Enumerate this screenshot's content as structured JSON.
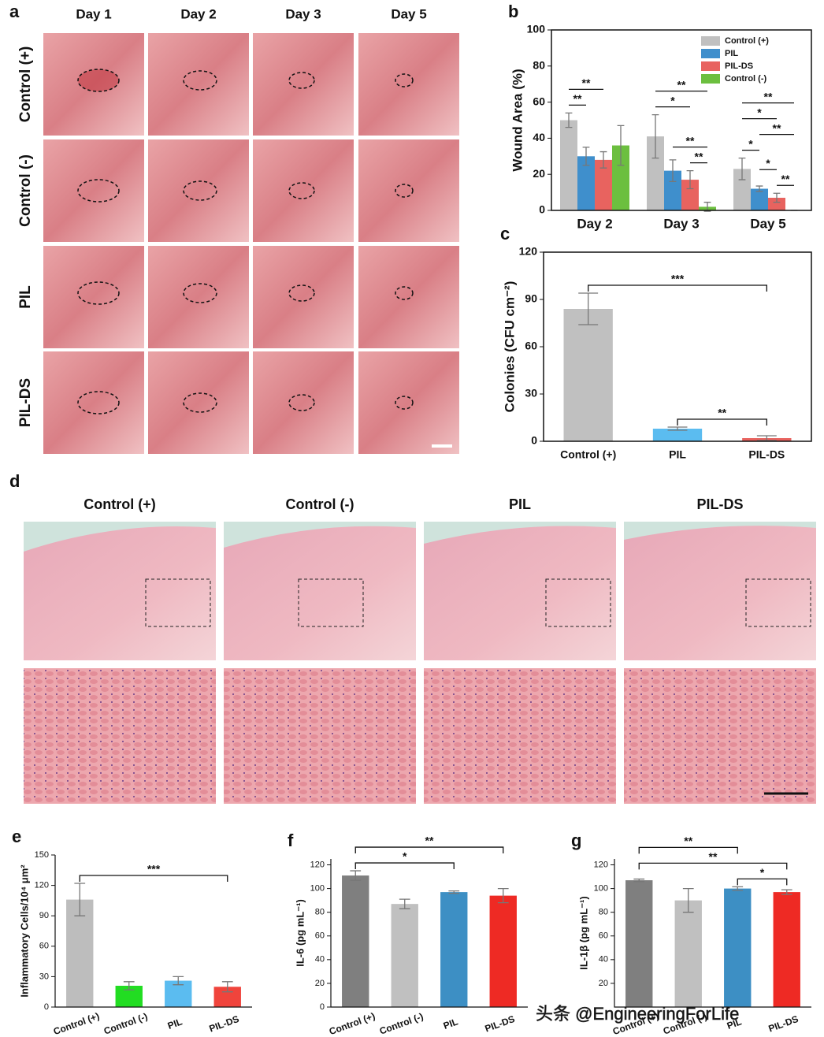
{
  "panel_a": {
    "label": "a",
    "columns": [
      "Day 1",
      "Day 2",
      "Day 3",
      "Day 5"
    ],
    "rows": [
      "Control (+)",
      "Control (-)",
      "PIL",
      "PIL-DS"
    ]
  },
  "panel_d": {
    "label": "d",
    "columns": [
      "Control (+)",
      "Control (-)",
      "PIL",
      "PIL-DS"
    ]
  },
  "watermark": "头条 @EngineeringForLife",
  "chart_data": [
    {
      "type": "bar",
      "panel": "b",
      "y_label": "Wound Area (%)",
      "categories": [
        "Day 2",
        "Day 3",
        "Day 5"
      ],
      "series": [
        {
          "name": "Control (+)",
          "color": "#c0c0c0",
          "values": [
            50,
            41,
            23
          ],
          "errors": [
            4,
            12,
            6
          ]
        },
        {
          "name": "PIL",
          "color": "#3f8fcc",
          "values": [
            30,
            22,
            12
          ],
          "errors": [
            5,
            6,
            1.5
          ]
        },
        {
          "name": "PIL-DS",
          "color": "#e8635f",
          "values": [
            28,
            17,
            7
          ],
          "errors": [
            4.5,
            5,
            2.5
          ]
        },
        {
          "name": "Control (-)",
          "color": "#6cbf3f",
          "values": [
            36,
            2,
            0
          ],
          "errors": [
            11,
            2.5,
            0
          ]
        }
      ],
      "ylim": [
        0,
        100
      ],
      "yticks": [
        0,
        20,
        40,
        60,
        80,
        100
      ],
      "legend": "top-right",
      "annotations": [
        {
          "text": "**",
          "category": 0,
          "series": [
            0,
            1
          ]
        },
        {
          "text": "**",
          "category": 0,
          "series": [
            0,
            2
          ]
        },
        {
          "text": "**",
          "category": 1,
          "series": [
            2,
            3
          ]
        },
        {
          "text": "**",
          "category": 1,
          "series": [
            1,
            3
          ]
        },
        {
          "text": "*",
          "category": 1,
          "series": [
            0,
            2
          ]
        },
        {
          "text": "**",
          "category": 1,
          "series": [
            0,
            3
          ]
        },
        {
          "text": "**",
          "category": 2,
          "series": [
            2,
            3
          ]
        },
        {
          "text": "*",
          "category": 2,
          "series": [
            1,
            2
          ]
        },
        {
          "text": "*",
          "category": 2,
          "series": [
            0,
            1
          ]
        },
        {
          "text": "**",
          "category": 2,
          "series": [
            1,
            3
          ]
        },
        {
          "text": "*",
          "category": 2,
          "series": [
            0,
            2
          ]
        },
        {
          "text": "**",
          "category": 2,
          "series": [
            0,
            3
          ]
        }
      ]
    },
    {
      "type": "bar",
      "panel": "c",
      "y_label": "Colonies (CFU cm⁻²)",
      "categories": [
        "Control (+)",
        "PIL",
        "PIL-DS"
      ],
      "values": [
        84,
        8,
        2
      ],
      "errors": [
        10,
        1,
        1.5
      ],
      "colors": [
        "#c0c0c0",
        "#5bbcf0",
        "#e8635f"
      ],
      "ylim": [
        0,
        120
      ],
      "yticks": [
        0,
        30,
        60,
        90,
        120
      ],
      "annotations": [
        {
          "text": "**",
          "bars": [
            1,
            2
          ]
        },
        {
          "text": "***",
          "bars": [
            0,
            2
          ]
        }
      ]
    },
    {
      "type": "bar",
      "panel": "e",
      "y_label": "Inflammatory Cells/10⁴ μm²",
      "categories": [
        "Control (+)",
        "Control (-)",
        "PIL",
        "PIL-DS"
      ],
      "values": [
        106,
        21,
        26,
        20
      ],
      "errors": [
        16,
        4,
        4,
        5
      ],
      "colors": [
        "#bdbdbd",
        "#22dd22",
        "#5bbcf0",
        "#f0443c"
      ],
      "ylim": [
        0,
        150
      ],
      "yticks": [
        0,
        30,
        60,
        90,
        120,
        150
      ],
      "annotations": [
        {
          "text": "***",
          "bars": [
            0,
            3
          ]
        }
      ]
    },
    {
      "type": "bar",
      "panel": "f",
      "y_label": "IL-6 (pg mL⁻¹)",
      "categories": [
        "Control (+)",
        "Control (-)",
        "PIL",
        "PIL-DS"
      ],
      "values": [
        111,
        87,
        97,
        94
      ],
      "errors": [
        4,
        4,
        1,
        6
      ],
      "colors": [
        "#7f7f7f",
        "#c0c0c0",
        "#3d8fc4",
        "#ee2a24"
      ],
      "ylim": [
        0,
        125
      ],
      "yticks": [
        0,
        20,
        40,
        60,
        80,
        100,
        120
      ],
      "annotations": [
        {
          "text": "*",
          "bars": [
            0,
            2
          ]
        },
        {
          "text": "**",
          "bars": [
            0,
            3
          ]
        }
      ]
    },
    {
      "type": "bar",
      "panel": "g",
      "y_label": "IL-1β (pg mL⁻¹)",
      "categories": [
        "Control (+)",
        "Control (-)",
        "PIL",
        "PIL-DS"
      ],
      "values": [
        107,
        90,
        100,
        97
      ],
      "errors": [
        1,
        10,
        1.5,
        2
      ],
      "colors": [
        "#7f7f7f",
        "#c0c0c0",
        "#3d8fc4",
        "#ee2a24"
      ],
      "ylim": [
        0,
        125
      ],
      "yticks": [
        20,
        40,
        60,
        80,
        100,
        120
      ],
      "annotations": [
        {
          "text": "*",
          "bars": [
            2,
            3
          ]
        },
        {
          "text": "**",
          "bars": [
            0,
            3
          ]
        },
        {
          "text": "**",
          "bars": [
            0,
            2
          ]
        }
      ]
    }
  ]
}
